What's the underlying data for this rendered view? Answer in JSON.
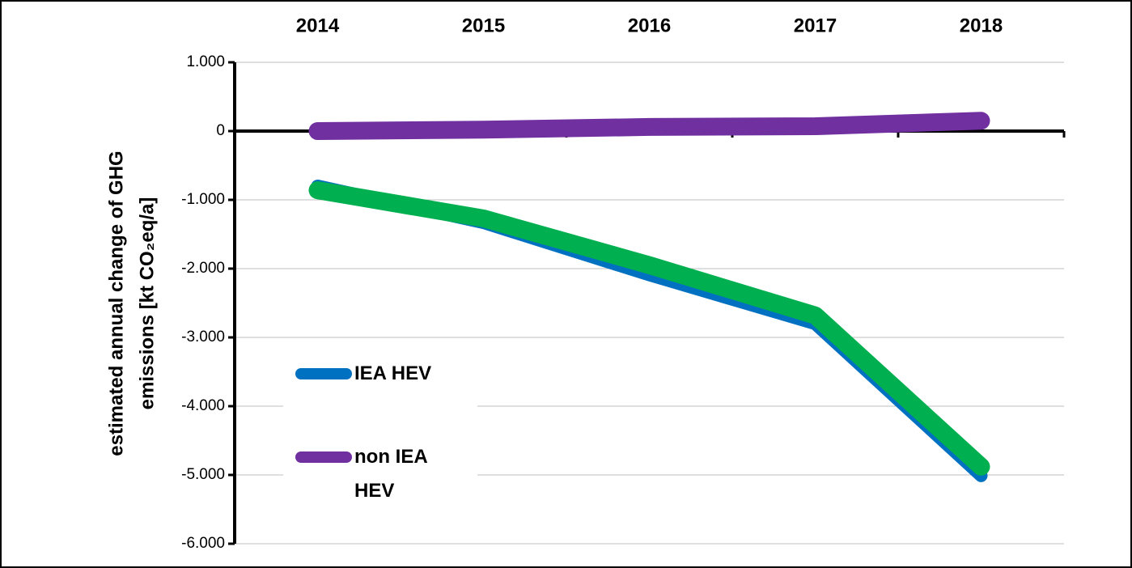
{
  "chart_data": {
    "type": "line",
    "y_label": [
      "estimated annual change of GHG",
      "emissions [kt CO₂eq/a]"
    ],
    "categories": [
      "2014",
      "2015",
      "2016",
      "2017",
      "2018"
    ],
    "series": [
      {
        "name": "IEA HEV",
        "color": "#0070c0",
        "values": [
          -800,
          -1330,
          -2090,
          -2800,
          -5010
        ]
      },
      {
        "color": "#00b050",
        "values": [
          -860,
          -1270,
          -1950,
          -2680,
          -4880
        ]
      },
      {
        "name": "non IEA HEV",
        "color": "#7030a0",
        "values": [
          0,
          20,
          60,
          70,
          150
        ]
      }
    ],
    "ylim": [
      -6000,
      1000
    ],
    "yticks": [
      {
        "value": -6000,
        "label": "-6.000"
      },
      {
        "value": -5000,
        "label": "-5.000"
      },
      {
        "value": -4000,
        "label": "-4.000"
      },
      {
        "value": -3000,
        "label": "-3.000"
      },
      {
        "value": -2000,
        "label": "-2.000"
      },
      {
        "value": -1000,
        "label": "-1.000"
      },
      0,
      {
        "value": 1000,
        "label": "1.000"
      }
    ],
    "grid": true
  }
}
